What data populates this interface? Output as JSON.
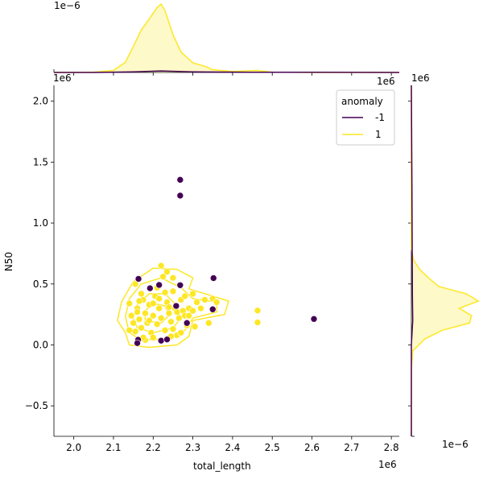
{
  "chart_data": {
    "type": "scatter",
    "title": "",
    "xlabel": "total_length",
    "ylabel": "N50",
    "x_scale_label": "1e6",
    "y_scale_label": "1e6",
    "top_margin_scale_label": "1e−6",
    "right_margin_scale_label": "1e−6",
    "xlim": [
      1.95,
      2.82
    ],
    "ylim": [
      -0.75,
      2.13
    ],
    "x_ticks": [
      2.0,
      2.1,
      2.2,
      2.3,
      2.4,
      2.5,
      2.6,
      2.7,
      2.8
    ],
    "x_tick_labels": [
      "2.0",
      "2.1",
      "2.2",
      "2.3",
      "2.4",
      "2.5",
      "2.6",
      "2.7",
      "2.8"
    ],
    "y_ticks": [
      -0.5,
      0.0,
      0.5,
      1.0,
      1.5,
      2.0
    ],
    "y_tick_labels": [
      "−0.5",
      "0.0",
      "0.5",
      "1.0",
      "1.5",
      "2.0"
    ],
    "legend": {
      "title": "anomaly",
      "position": "top-right",
      "entries": [
        {
          "label": "-1",
          "color": "#440154"
        },
        {
          "label": "1",
          "color": "#fde725"
        }
      ]
    },
    "series": [
      {
        "name": "-1",
        "color": "#440154",
        "points": [
          [
            2.268,
            1.355
          ],
          [
            2.268,
            1.225
          ],
          [
            2.605,
            0.213
          ],
          [
            2.163,
            0.542
          ],
          [
            2.192,
            0.465
          ],
          [
            2.215,
            0.492
          ],
          [
            2.268,
            0.49
          ],
          [
            2.352,
            0.548
          ],
          [
            2.35,
            0.292
          ],
          [
            2.258,
            0.32
          ],
          [
            2.22,
            0.035
          ],
          [
            2.235,
            0.045
          ],
          [
            2.162,
            0.042
          ],
          [
            2.16,
            0.015
          ],
          [
            2.285,
            0.18
          ]
        ]
      },
      {
        "name": "1",
        "color": "#fde725",
        "points": [
          [
            2.463,
            0.282
          ],
          [
            2.463,
            0.185
          ],
          [
            2.14,
            0.34
          ],
          [
            2.145,
            0.24
          ],
          [
            2.15,
            0.18
          ],
          [
            2.155,
            0.11
          ],
          [
            2.16,
            0.3
          ],
          [
            2.165,
            0.21
          ],
          [
            2.17,
            0.14
          ],
          [
            2.175,
            0.37
          ],
          [
            2.18,
            0.26
          ],
          [
            2.185,
            0.18
          ],
          [
            2.19,
            0.33
          ],
          [
            2.195,
            0.1
          ],
          [
            2.2,
            0.24
          ],
          [
            2.205,
            0.4
          ],
          [
            2.21,
            0.17
          ],
          [
            2.215,
            0.3
          ],
          [
            2.22,
            0.22
          ],
          [
            2.225,
            0.56
          ],
          [
            2.23,
            0.12
          ],
          [
            2.235,
            0.35
          ],
          [
            2.24,
            0.26
          ],
          [
            2.245,
            0.19
          ],
          [
            2.25,
            0.44
          ],
          [
            2.255,
            0.3
          ],
          [
            2.26,
            0.08
          ],
          [
            2.265,
            0.22
          ],
          [
            2.27,
            0.37
          ],
          [
            2.275,
            0.28
          ],
          [
            2.28,
            0.4
          ],
          [
            2.285,
            0.16
          ],
          [
            2.29,
            0.3
          ],
          [
            2.3,
            0.42
          ],
          [
            2.31,
            0.35
          ],
          [
            2.33,
            0.37
          ],
          [
            2.34,
            0.18
          ],
          [
            2.35,
            0.38
          ],
          [
            2.36,
            0.35
          ],
          [
            2.305,
            0.15
          ],
          [
            2.155,
            0.5
          ],
          [
            2.235,
            0.6
          ],
          [
            2.22,
            0.65
          ],
          [
            2.25,
            0.55
          ],
          [
            2.17,
            0.42
          ],
          [
            2.2,
            0.06
          ],
          [
            2.18,
            0.04
          ],
          [
            2.245,
            0.07
          ],
          [
            2.27,
            0.1
          ],
          [
            2.14,
            0.12
          ],
          [
            2.21,
            0.47
          ],
          [
            2.28,
            0.24
          ],
          [
            2.19,
            0.2
          ],
          [
            2.24,
            0.31
          ],
          [
            2.16,
            0.27
          ],
          [
            2.23,
            0.43
          ],
          [
            2.2,
            0.34
          ],
          [
            2.25,
            0.13
          ],
          [
            2.26,
            0.27
          ],
          [
            2.175,
            0.06
          ],
          [
            2.215,
            0.38
          ],
          [
            2.165,
            0.36
          ],
          [
            2.29,
            0.24
          ],
          [
            2.32,
            0.3
          ],
          [
            2.3,
            0.28
          ]
        ]
      }
    ],
    "kde_contours": [
      {
        "color": "#fde725",
        "points": [
          [
            2.13,
            0.1
          ],
          [
            2.14,
            0.0
          ],
          [
            2.19,
            -0.02
          ],
          [
            2.26,
            0.0
          ],
          [
            2.29,
            0.07
          ],
          [
            2.3,
            0.2
          ],
          [
            2.38,
            0.25
          ],
          [
            2.39,
            0.36
          ],
          [
            2.34,
            0.41
          ],
          [
            2.29,
            0.46
          ],
          [
            2.3,
            0.55
          ],
          [
            2.26,
            0.62
          ],
          [
            2.2,
            0.63
          ],
          [
            2.15,
            0.52
          ],
          [
            2.12,
            0.35
          ],
          [
            2.11,
            0.2
          ]
        ]
      },
      {
        "color": "#fde725",
        "points": [
          [
            2.14,
            0.1
          ],
          [
            2.17,
            0.04
          ],
          [
            2.23,
            0.05
          ],
          [
            2.28,
            0.12
          ],
          [
            2.3,
            0.22
          ],
          [
            2.36,
            0.27
          ],
          [
            2.36,
            0.35
          ],
          [
            2.3,
            0.38
          ],
          [
            2.27,
            0.47
          ],
          [
            2.22,
            0.55
          ],
          [
            2.17,
            0.5
          ],
          [
            2.14,
            0.38
          ],
          [
            2.13,
            0.23
          ]
        ]
      },
      {
        "color": "#fde725",
        "points": [
          [
            2.16,
            0.14
          ],
          [
            2.2,
            0.1
          ],
          [
            2.25,
            0.14
          ],
          [
            2.27,
            0.22
          ],
          [
            2.26,
            0.32
          ],
          [
            2.23,
            0.42
          ],
          [
            2.19,
            0.42
          ],
          [
            2.16,
            0.33
          ],
          [
            2.15,
            0.22
          ]
        ]
      },
      {
        "color": "#fde725",
        "points": [
          [
            2.18,
            0.2
          ],
          [
            2.22,
            0.18
          ],
          [
            2.24,
            0.24
          ],
          [
            2.23,
            0.32
          ],
          [
            2.2,
            0.34
          ],
          [
            2.18,
            0.28
          ]
        ]
      }
    ],
    "top_marginal": {
      "fill_color": "#fde725",
      "density_max": 1.0,
      "series_1": [
        [
          1.95,
          0.0
        ],
        [
          2.0,
          0.0
        ],
        [
          2.05,
          0.005
        ],
        [
          2.1,
          0.03
        ],
        [
          2.13,
          0.15
        ],
        [
          2.15,
          0.38
        ],
        [
          2.17,
          0.62
        ],
        [
          2.19,
          0.78
        ],
        [
          2.21,
          0.95
        ],
        [
          2.22,
          1.0
        ],
        [
          2.23,
          0.9
        ],
        [
          2.25,
          0.55
        ],
        [
          2.27,
          0.3
        ],
        [
          2.3,
          0.14
        ],
        [
          2.33,
          0.09
        ],
        [
          2.35,
          0.04
        ],
        [
          2.4,
          0.015
        ],
        [
          2.46,
          0.03
        ],
        [
          2.5,
          0.005
        ],
        [
          2.6,
          0.0
        ],
        [
          2.82,
          0.0
        ]
      ],
      "series_neg1": [
        [
          1.95,
          0.0
        ],
        [
          2.05,
          0.0
        ],
        [
          2.15,
          0.008
        ],
        [
          2.22,
          0.022
        ],
        [
          2.3,
          0.01
        ],
        [
          2.45,
          0.002
        ],
        [
          2.6,
          0.004
        ],
        [
          2.82,
          0.0
        ]
      ]
    },
    "right_marginal": {
      "fill_color": "#fde725",
      "density_max": 1.0,
      "series_1": [
        [
          -0.75,
          0.0
        ],
        [
          -0.2,
          0.0
        ],
        [
          -0.05,
          0.02
        ],
        [
          0.05,
          0.2
        ],
        [
          0.12,
          0.45
        ],
        [
          0.18,
          0.85
        ],
        [
          0.24,
          0.88
        ],
        [
          0.3,
          0.7
        ],
        [
          0.36,
          0.98
        ],
        [
          0.42,
          0.8
        ],
        [
          0.48,
          0.4
        ],
        [
          0.55,
          0.25
        ],
        [
          0.62,
          0.12
        ],
        [
          0.7,
          0.03
        ],
        [
          0.8,
          0.0
        ],
        [
          2.13,
          0.0
        ]
      ],
      "series_neg1": [
        [
          -0.75,
          0.0
        ],
        [
          0.0,
          0.0
        ],
        [
          0.2,
          0.02
        ],
        [
          0.4,
          0.015
        ],
        [
          1.3,
          0.008
        ],
        [
          2.13,
          0.0
        ]
      ]
    }
  }
}
